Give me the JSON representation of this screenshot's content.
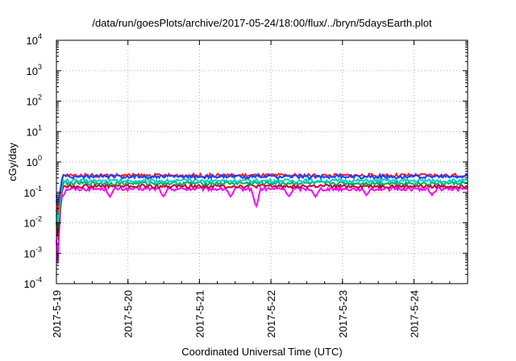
{
  "chart_data": {
    "type": "line",
    "title": "/data/run/goesPlots/archive/2017-05-24/18:00/flux/../bryn/5daysEarth.plot",
    "xlabel": "Coordinated Universal Time (UTC)",
    "ylabel": "cGy/day",
    "yscale": "log",
    "ylim": [
      0.0001,
      10000
    ],
    "xlim": [
      "2017-05-19",
      "2017-05-24 18:00"
    ],
    "grid": true,
    "legend": "none",
    "x_ticks": [
      "2017-5-19",
      "2017-5-20",
      "2017-5-21",
      "2017-5-22",
      "2017-5-23",
      "2017-5-24"
    ],
    "y_ticks": [
      {
        "value": 0.0001,
        "base": "10",
        "exp": "-4"
      },
      {
        "value": 0.001,
        "base": "10",
        "exp": "-3"
      },
      {
        "value": 0.01,
        "base": "10",
        "exp": "-2"
      },
      {
        "value": 0.1,
        "base": "10",
        "exp": "-1"
      },
      {
        "value": 1,
        "base": "10",
        "exp": "0"
      },
      {
        "value": 10,
        "base": "10",
        "exp": "1"
      },
      {
        "value": 100,
        "base": "10",
        "exp": "2"
      },
      {
        "value": 1000,
        "base": "10",
        "exp": "3"
      },
      {
        "value": 10000,
        "base": "10",
        "exp": "4"
      }
    ],
    "series": [
      {
        "color": "#ff00ff",
        "level": 0.13,
        "dips": [
          [
            "2017-05-19 00:30",
            0.0004
          ],
          [
            "2017-05-19 02:00",
            0.07
          ],
          [
            "2017-05-19 18:00",
            0.07
          ],
          [
            "2017-05-20 12:00",
            0.07
          ],
          [
            "2017-05-21 10:30",
            0.07
          ],
          [
            "2017-05-21 19:00",
            0.03
          ],
          [
            "2017-05-22 06:00",
            0.07
          ],
          [
            "2017-05-22 15:00",
            0.07
          ],
          [
            "2017-05-23 08:00",
            0.08
          ],
          [
            "2017-05-24 06:00",
            0.08
          ]
        ]
      },
      {
        "color": "#c0003c",
        "level": 0.16,
        "dips": [
          [
            "2017-05-19 00:30",
            0.003
          ]
        ]
      },
      {
        "color": "#00b050",
        "level": 0.2,
        "dips": [
          [
            "2017-05-19 00:30",
            0.006
          ]
        ]
      },
      {
        "color": "#00d0d0",
        "level": 0.24,
        "dips": [
          [
            "2017-05-19 00:30",
            0.01
          ]
        ]
      },
      {
        "color": "#ff2020",
        "level": 0.36,
        "dips": [
          [
            "2017-05-19 00:30",
            0.02
          ]
        ]
      },
      {
        "color": "#2040ff",
        "level": 0.33,
        "dips": [
          [
            "2017-05-19 00:30",
            0.04
          ]
        ]
      }
    ]
  }
}
